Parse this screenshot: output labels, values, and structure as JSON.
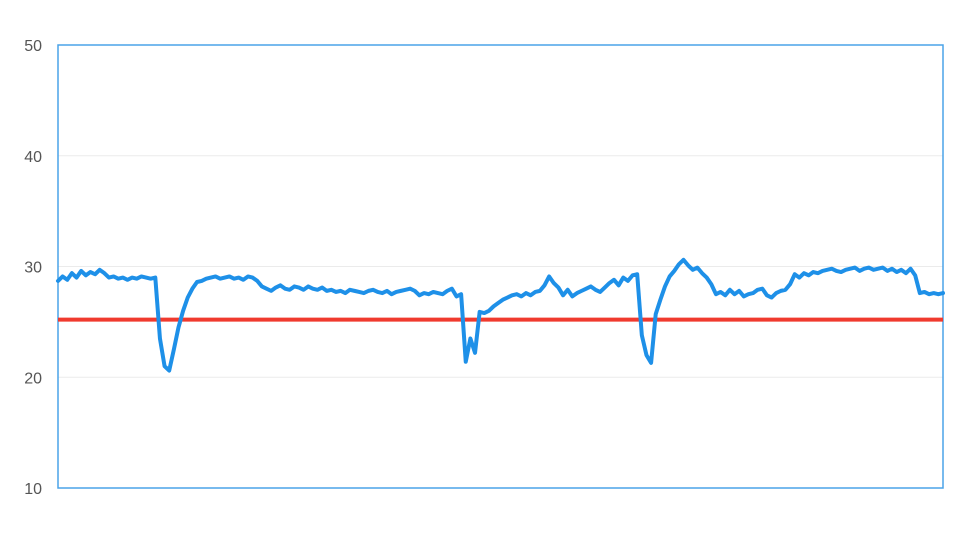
{
  "chart_data": {
    "type": "line",
    "title": "",
    "xlabel": "",
    "ylabel": "",
    "ylim": [
      10,
      50
    ],
    "yticks": [
      50,
      40,
      30,
      20,
      10
    ],
    "grid": true,
    "legend": "none",
    "colors": {
      "series": "#1E90E8",
      "threshold": "#F03A2E",
      "frame": "#4AA3E8",
      "grid": "#EBEBEB",
      "tick_text": "#555555"
    },
    "series": [
      {
        "values": [
          28.7,
          29.1,
          28.8,
          29.4,
          29.0,
          29.6,
          29.2,
          29.5,
          29.3,
          29.7,
          29.4,
          29.0,
          29.1,
          28.9,
          29.0,
          28.8,
          29.0,
          28.9,
          29.1,
          29.0,
          28.9,
          29.0,
          23.5,
          21.0,
          20.6,
          22.5,
          24.5,
          26.0,
          27.2,
          28.0,
          28.6,
          28.7,
          28.9,
          29.0,
          29.1,
          28.9,
          29.0,
          29.1,
          28.9,
          29.0,
          28.8,
          29.1,
          29.0,
          28.7,
          28.2,
          28.0,
          27.8,
          28.1,
          28.3,
          28.0,
          27.9,
          28.2,
          28.1,
          27.9,
          28.2,
          28.0,
          27.9,
          28.1,
          27.8,
          27.9,
          27.7,
          27.8,
          27.6,
          27.9,
          27.8,
          27.7,
          27.6,
          27.8,
          27.9,
          27.7,
          27.6,
          27.8,
          27.5,
          27.7,
          27.8,
          27.9,
          28.0,
          27.8,
          27.4,
          27.6,
          27.5,
          27.7,
          27.6,
          27.5,
          27.8,
          28.0,
          27.3,
          27.5,
          21.4,
          23.5,
          22.2,
          25.9,
          25.8,
          26.0,
          26.4,
          26.7,
          27.0,
          27.2,
          27.4,
          27.5,
          27.3,
          27.6,
          27.4,
          27.7,
          27.8,
          28.3,
          29.1,
          28.5,
          28.1,
          27.4,
          27.9,
          27.3,
          27.6,
          27.8,
          28.0,
          28.2,
          27.9,
          27.7,
          28.1,
          28.5,
          28.8,
          28.3,
          29.0,
          28.7,
          29.2,
          29.3,
          23.8,
          22.0,
          21.3,
          25.7,
          27.0,
          28.2,
          29.1,
          29.6,
          30.2,
          30.6,
          30.1,
          29.7,
          29.9,
          29.4,
          29.0,
          28.4,
          27.5,
          27.7,
          27.4,
          27.9,
          27.5,
          27.8,
          27.3,
          27.5,
          27.6,
          27.9,
          28.0,
          27.4,
          27.2,
          27.6,
          27.8,
          27.9,
          28.4,
          29.3,
          29.0,
          29.4,
          29.2,
          29.5,
          29.4,
          29.6,
          29.7,
          29.8,
          29.6,
          29.5,
          29.7,
          29.8,
          29.9,
          29.6,
          29.8,
          29.9,
          29.7,
          29.8,
          29.9,
          29.6,
          29.8,
          29.5,
          29.7,
          29.4,
          29.8,
          29.2,
          27.6,
          27.7,
          27.5,
          27.6,
          27.5,
          27.6
        ]
      }
    ],
    "reference_lines": [
      {
        "axis": "y",
        "value": 25.2
      }
    ]
  }
}
